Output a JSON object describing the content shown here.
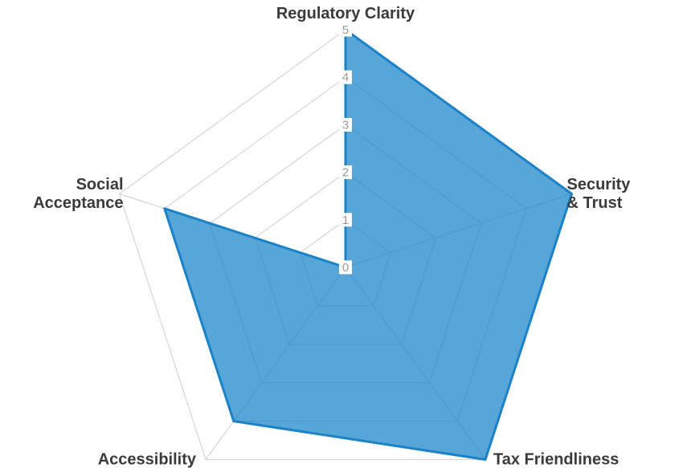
{
  "chart_data": {
    "type": "radar",
    "categories": [
      "Regulatory Clarity",
      "Security & Trust",
      "Tax Friendliness",
      "Accessibility",
      "Social Acceptance"
    ],
    "display_labels": [
      [
        "Regulatory Clarity"
      ],
      [
        "Security",
        "& Trust"
      ],
      [
        "Tax Friendliness"
      ],
      [
        "Accessibility"
      ],
      [
        "Social",
        "Acceptance"
      ]
    ],
    "series": [
      {
        "name": "",
        "values": [
          5,
          5,
          5,
          4,
          4
        ]
      }
    ],
    "ticks": [
      0,
      1,
      2,
      3,
      4,
      5
    ],
    "scale": {
      "min": 0,
      "max": 5,
      "step": 1
    },
    "fill_to_origin": true,
    "grid": {
      "shape": "pentagon",
      "rings": 5,
      "show_spokes": true,
      "color": "#d6d6d6"
    },
    "legend": "none",
    "colors": {
      "fill": "rgba(23, 130, 201, 0.72)",
      "stroke": "#1a82c8",
      "axis_label": "#3a3a3a",
      "tick_label": "#9a9a9a",
      "tick_backdrop": "#ffffff",
      "background": "#ffffff"
    }
  }
}
